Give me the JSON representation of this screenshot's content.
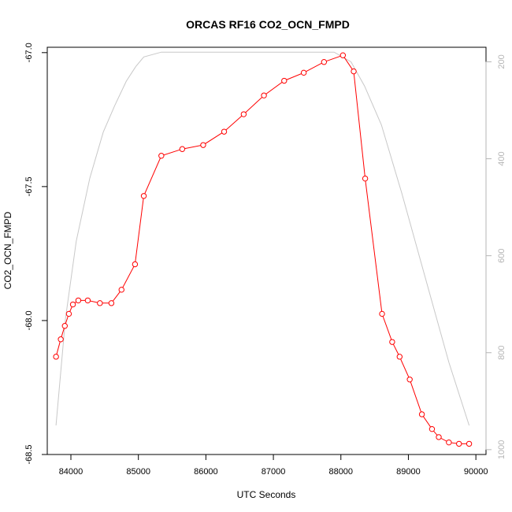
{
  "chart_data": {
    "type": "line",
    "title": "ORCAS RF16 CO2_OCN_FMPD",
    "xlabel": "UTC Seconds",
    "ylabel": "CO2_OCN_FMPD",
    "xlim": [
      83650,
      90150
    ],
    "ylim": [
      -68.5,
      -66.98
    ],
    "y2lim": [
      1010,
      170
    ],
    "x_ticks": [
      84000,
      85000,
      86000,
      87000,
      88000,
      89000,
      90000
    ],
    "y_ticks": [
      -68.5,
      -68.0,
      -67.5,
      -67.0
    ],
    "y_tick_labels": [
      "-68.5",
      "-68.0",
      "-67.5",
      "-67.0"
    ],
    "y2_ticks": [
      200,
      400,
      600,
      800,
      1000
    ],
    "grid": false,
    "series": [
      {
        "color": "#ff0000",
        "markers": "open-circle",
        "axis": "left",
        "x": [
          83780,
          83850,
          83910,
          83970,
          84030,
          84110,
          84250,
          84430,
          84600,
          84750,
          84950,
          85080,
          85340,
          85650,
          85960,
          86270,
          86560,
          86860,
          87160,
          87450,
          87750,
          88030,
          88190,
          88360,
          88610,
          88760,
          88870,
          89020,
          89200,
          89350,
          89450,
          89600,
          89750,
          89900
        ],
        "values": [
          -68.135,
          -68.07,
          -68.02,
          -67.975,
          -67.94,
          -67.925,
          -67.925,
          -67.935,
          -67.935,
          -67.885,
          -67.79,
          -67.535,
          -67.385,
          -67.36,
          -67.345,
          -67.295,
          -67.23,
          -67.16,
          -67.105,
          -67.075,
          -67.035,
          -67.01,
          -67.07,
          -67.47,
          -67.975,
          -68.08,
          -68.135,
          -68.22,
          -68.35,
          -68.405,
          -68.435,
          -68.455,
          -68.46,
          -68.46
        ]
      },
      {
        "color": "#c8c8c8",
        "markers": "none",
        "axis": "right",
        "x": [
          83780,
          83920,
          84080,
          84280,
          84480,
          84650,
          84820,
          84960,
          85080,
          85340,
          85700,
          86200,
          86800,
          87400,
          87900,
          88150,
          88350,
          88600,
          88900,
          89200,
          89400,
          89600,
          89900
        ],
        "values": [
          950,
          730,
          570,
          440,
          345,
          290,
          240,
          210,
          190,
          180,
          180,
          180,
          180,
          180,
          180,
          200,
          250,
          330,
          470,
          620,
          720,
          820,
          950
        ]
      }
    ]
  }
}
